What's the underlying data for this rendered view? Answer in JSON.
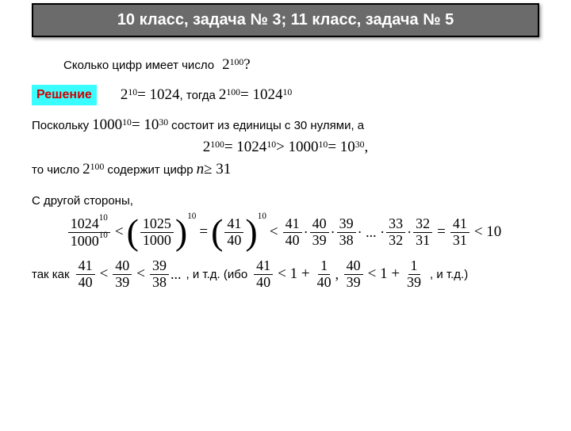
{
  "header": "10 класс, задача № 3; 11 класс, задача № 5",
  "q_prefix": "Сколько цифр имеет число",
  "q_math": "2<sup class='sup'>100</sup> ?",
  "solution_label": "Решение",
  "sol1_math": "2<sup class='sup'>10</sup> = 1024",
  "sol1_mid": ", тогда ",
  "sol1_math2": "2<sup class='sup'>100</sup> = 1024<sup class='sup'>10</sup>",
  "p1_pre": "Поскольку ",
  "p1_math": "1000<sup class='sup'>10</sup> = 10<sup class='sup'>30</sup>",
  "p1_post": " состоит из единицы с 30 нулями, а",
  "p2_math": "2<sup class='sup'>100</sup> = 1024<sup class='sup'>10</sup> &gt; 1000<sup class='sup'>10</sup> = 10<sup class='sup'>30</sup> ,",
  "p3_pre": "то число ",
  "p3_math": "2<sup class='sup'>100</sup>",
  "p3_mid": " содержит цифр ",
  "p3_math2": "<span class='it'>n</span> ≥ 31",
  "other": "С другой стороны,",
  "since_pre": "так как",
  "since_post": ", и т.д. (ибо",
  "since_end": ", и т.д.)",
  "fracs": {
    "a": {
      "n": "1024<sup class='sup'>10</sup>",
      "d": "1000<sup class='sup'>10</sup>"
    },
    "b": {
      "n": "1025",
      "d": "1000"
    },
    "c": {
      "n": "41",
      "d": "40"
    },
    "d": {
      "n": "40",
      "d": "39"
    },
    "e": {
      "n": "39",
      "d": "38"
    },
    "f": {
      "n": "33",
      "d": "32"
    },
    "g": {
      "n": "32",
      "d": "31"
    },
    "h": {
      "n": "41",
      "d": "31"
    },
    "i1": {
      "n": "41",
      "d": "40"
    },
    "i2": {
      "n": "40",
      "d": "39"
    },
    "i3": {
      "n": "39",
      "d": "38"
    },
    "j1": {
      "n": "41",
      "d": "40"
    },
    "j2": {
      "n": "1",
      "d": "40"
    },
    "j3": {
      "n": "40",
      "d": "39"
    },
    "j4": {
      "n": "1",
      "d": "39"
    }
  }
}
